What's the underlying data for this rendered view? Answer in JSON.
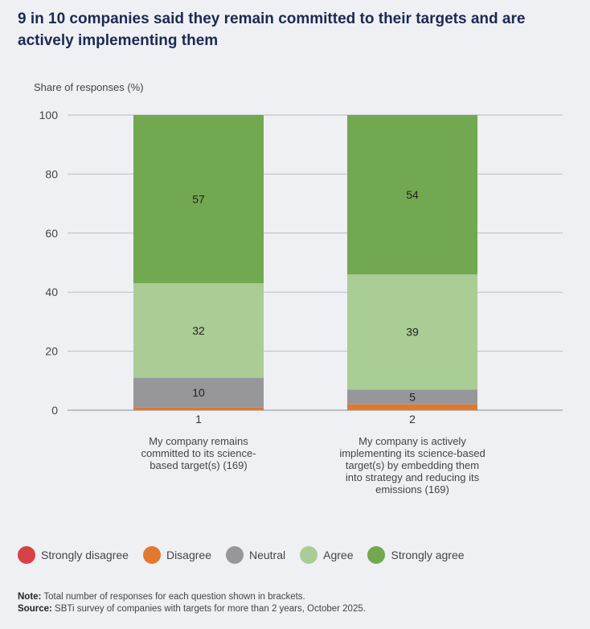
{
  "title": "9 in 10 companies said they remain committed to their targets and are actively implementing them",
  "colors": {
    "strongly_disagree": "#d64246",
    "disagree": "#e0782f",
    "neutral": "#97979b",
    "agree": "#a9cd95",
    "strongly_agree": "#72a84f",
    "grid": "#b9bcc2"
  },
  "chart_data": {
    "type": "bar",
    "stacked": true,
    "title": "",
    "ylabel": "Share of responses (%)",
    "ylim": [
      0,
      100
    ],
    "yticks": [
      0,
      20,
      40,
      60,
      80,
      100
    ],
    "grid": true,
    "categories": [
      "1",
      "2"
    ],
    "category_descriptions": [
      [
        "My company remains",
        "committed to its science-",
        "based target(s) (169)"
      ],
      [
        "My company is actively",
        "implementing its science-based",
        "target(s) by  embedding them",
        "into strategy and reducing its",
        "emissions (169)"
      ]
    ],
    "series": [
      {
        "name": "Strongly disagree",
        "color": "#d64246",
        "values": [
          0,
          0
        ],
        "labels": [
          "",
          ""
        ]
      },
      {
        "name": "Disagree",
        "color": "#e0782f",
        "values": [
          1,
          2
        ],
        "labels": [
          "",
          ""
        ]
      },
      {
        "name": "Neutral",
        "color": "#97979b",
        "values": [
          10,
          5
        ],
        "labels": [
          "10",
          "5"
        ]
      },
      {
        "name": "Agree",
        "color": "#a9cd95",
        "values": [
          32,
          39
        ],
        "labels": [
          "32",
          "39"
        ]
      },
      {
        "name": "Strongly agree",
        "color": "#72a84f",
        "values": [
          57,
          54
        ],
        "labels": [
          "57",
          "54"
        ]
      }
    ],
    "legend_position": "bottom"
  },
  "legend": [
    {
      "label": "Strongly disagree",
      "color": "#d64246"
    },
    {
      "label": "Disagree",
      "color": "#e0782f"
    },
    {
      "label": "Neutral",
      "color": "#97979b"
    },
    {
      "label": "Agree",
      "color": "#a9cd95"
    },
    {
      "label": "Strongly agree",
      "color": "#72a84f"
    }
  ],
  "footnotes": {
    "note_label": "Note:",
    "note_text": " Total number of responses for each question shown in brackets.",
    "source_label": "Source:",
    "source_text": " SBTi survey of companies with targets for more than 2 years, October 2025."
  }
}
